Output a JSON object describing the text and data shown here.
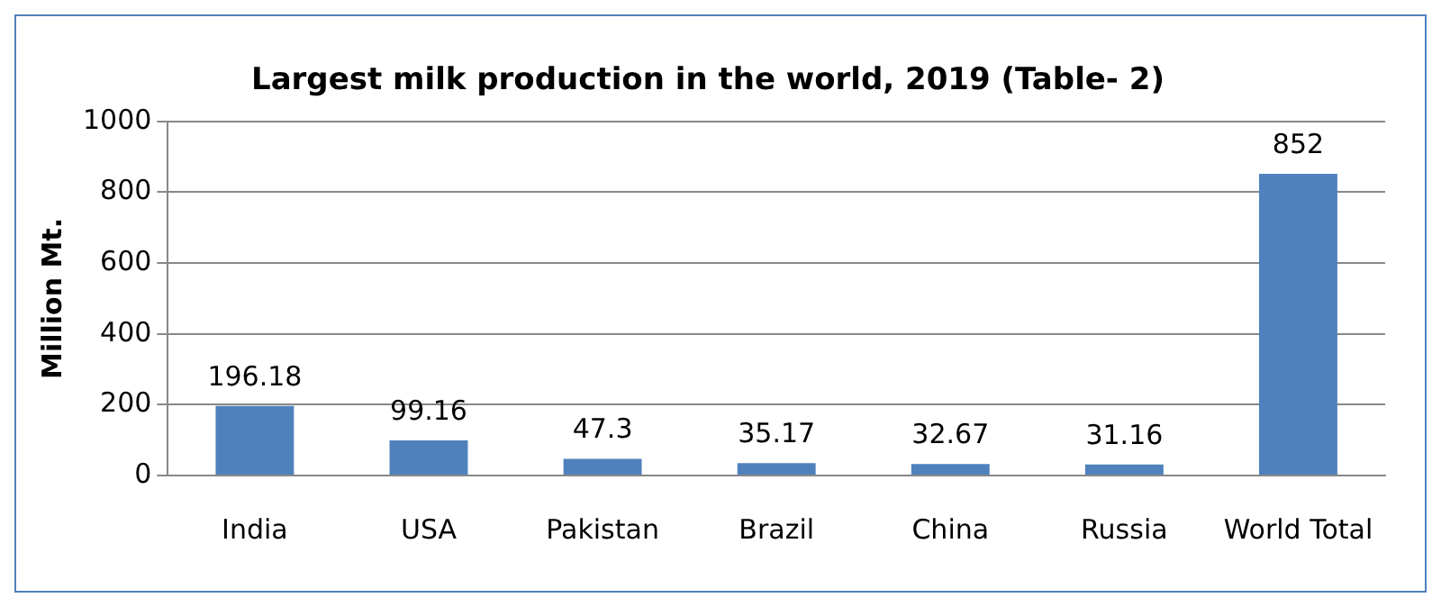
{
  "chart_data": {
    "type": "bar",
    "title": "Largest milk production in the world, 2019 (Table- 2)",
    "ylabel": "Million Mt.",
    "categories": [
      "India",
      "USA",
      "Pakistan",
      "Brazil",
      "China",
      "Russia",
      "World Total"
    ],
    "values": [
      196.18,
      99.16,
      47.3,
      35.17,
      32.67,
      31.16,
      852
    ],
    "color": "#4f81bd",
    "ylim": [
      0,
      1000
    ],
    "yticks": [
      0,
      200,
      400,
      600,
      800,
      1000
    ],
    "grid": "y",
    "data_labels": true,
    "legend": false
  }
}
